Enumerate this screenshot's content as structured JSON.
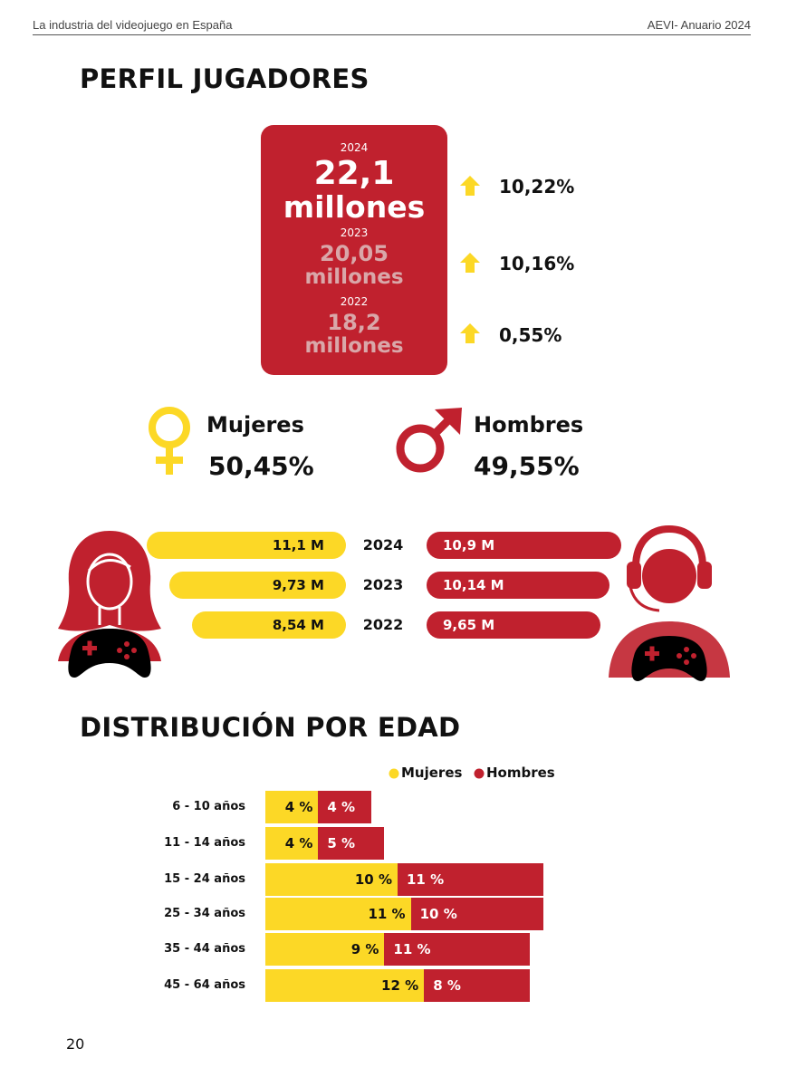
{
  "header": {
    "left": "La industria del videojuego en España",
    "right": "AEVI- Anuario 2024"
  },
  "section1_title": "PERFIL JUGADORES",
  "players": [
    {
      "year": "2024",
      "value": "22,1",
      "unit": "millones",
      "change": "10,22%"
    },
    {
      "year": "2023",
      "value": "20,05",
      "unit": "millones",
      "change": "10,16%"
    },
    {
      "year": "2022",
      "value": "18,2",
      "unit": "millones",
      "change": "0,55%"
    }
  ],
  "gender": {
    "female_label": "Mujeres",
    "female_pct": "50,45%",
    "male_label": "Hombres",
    "male_pct": "49,55%"
  },
  "gender_years": [
    {
      "year": "2024",
      "female": "11,1 M",
      "male": "10,9 M"
    },
    {
      "year": "2023",
      "female": "9,73 M",
      "male": "10,14 M"
    },
    {
      "year": "2022",
      "female": "8,54 M",
      "male": "9,65 M"
    }
  ],
  "section2_title": "DISTRIBUCIÓN POR EDAD",
  "colors": {
    "yellow": "#fcd826",
    "red": "#c0212e"
  },
  "chart_data": {
    "type": "bar",
    "stacked": true,
    "orientation": "horizontal",
    "legend_position": "top-right",
    "categories": [
      "6 - 10 años",
      "11 - 14 años",
      "15 - 24 años",
      "25 - 34 años",
      "35 - 44 años",
      "45 - 64 años"
    ],
    "series": [
      {
        "name": "Mujeres",
        "color": "#fcd826",
        "values": [
          4,
          4,
          10,
          11,
          9,
          12
        ],
        "labels": [
          "4 %",
          "4 %",
          "10 %",
          "11 %",
          "9 %",
          "12 %"
        ]
      },
      {
        "name": "Hombres",
        "color": "#c0212e",
        "values": [
          4,
          5,
          11,
          10,
          11,
          8
        ],
        "labels": [
          "4 %",
          "5 %",
          "11 %",
          "10 %",
          "11 %",
          "8 %"
        ]
      }
    ]
  },
  "page_number": "20"
}
